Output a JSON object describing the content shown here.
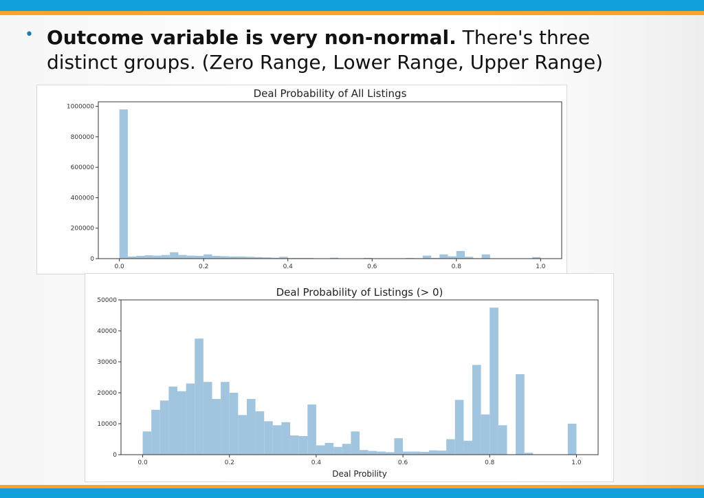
{
  "theme": {
    "accent_blue": "#129fd8",
    "accent_orange": "#f5a623",
    "bar_color": "#a1c4df",
    "bullet_color": "#1f7ea8"
  },
  "bullet": {
    "bold_text": "Outcome variable is very non-normal.",
    "text": " There's three distinct groups. (Zero Range, Lower Range, Upper Range)"
  },
  "chart_data": [
    {
      "type": "bar",
      "title": "Deal Probability of All Listings",
      "xlabel": "",
      "ylabel": "",
      "xlim": [
        -0.05,
        1.05
      ],
      "ylim": [
        0,
        1030000
      ],
      "x_ticks": [
        0.0,
        0.2,
        0.4,
        0.6,
        0.8,
        1.0
      ],
      "x_tick_labels": [
        "0.0",
        "0.2",
        "0.4",
        "0.6",
        "0.8",
        "1.0"
      ],
      "y_ticks": [
        0,
        200000,
        400000,
        600000,
        800000,
        1000000
      ],
      "y_tick_labels": [
        "0",
        "200000",
        "400000",
        "600000",
        "800000",
        "1000000"
      ],
      "bin_start": 0.0,
      "bin_width": 0.02,
      "values": [
        980000,
        14000,
        18000,
        22000,
        20000,
        24000,
        42000,
        24000,
        20000,
        18000,
        28000,
        18000,
        16000,
        14000,
        14000,
        12000,
        10000,
        8000,
        6000,
        12000,
        4000,
        4000,
        4000,
        2000,
        2000,
        6000,
        1500,
        1500,
        1000,
        5000,
        1000,
        1000,
        1000,
        1000,
        4000,
        3000,
        20000,
        5000,
        28000,
        15000,
        50000,
        12000,
        3000,
        28000,
        1000,
        500,
        500,
        500,
        500,
        10000
      ]
    },
    {
      "type": "bar",
      "title": "Deal Probability of Listings (> 0)",
      "xlabel": "Deal Probility",
      "ylabel": "",
      "xlim": [
        -0.05,
        1.05
      ],
      "ylim": [
        0,
        50000
      ],
      "x_ticks": [
        0.0,
        0.2,
        0.4,
        0.6,
        0.8,
        1.0
      ],
      "x_tick_labels": [
        "0.0",
        "0.2",
        "0.4",
        "0.6",
        "0.8",
        "1.0"
      ],
      "y_ticks": [
        0,
        10000,
        20000,
        30000,
        40000,
        50000
      ],
      "y_tick_labels": [
        "0",
        "10000",
        "20000",
        "30000",
        "40000",
        "50000"
      ],
      "bin_start": 0.0,
      "bin_width": 0.02,
      "values": [
        7500,
        14500,
        17500,
        22000,
        20500,
        23000,
        37500,
        23500,
        18000,
        23500,
        20000,
        12800,
        18000,
        14000,
        10800,
        9500,
        10500,
        6200,
        6000,
        16200,
        3000,
        3800,
        2500,
        3500,
        7500,
        1500,
        1200,
        1000,
        800,
        5300,
        1000,
        1000,
        900,
        1400,
        1300,
        5000,
        17700,
        4500,
        29000,
        13000,
        47500,
        9500,
        0,
        26000,
        600,
        0,
        0,
        0,
        0,
        10000
      ]
    }
  ]
}
